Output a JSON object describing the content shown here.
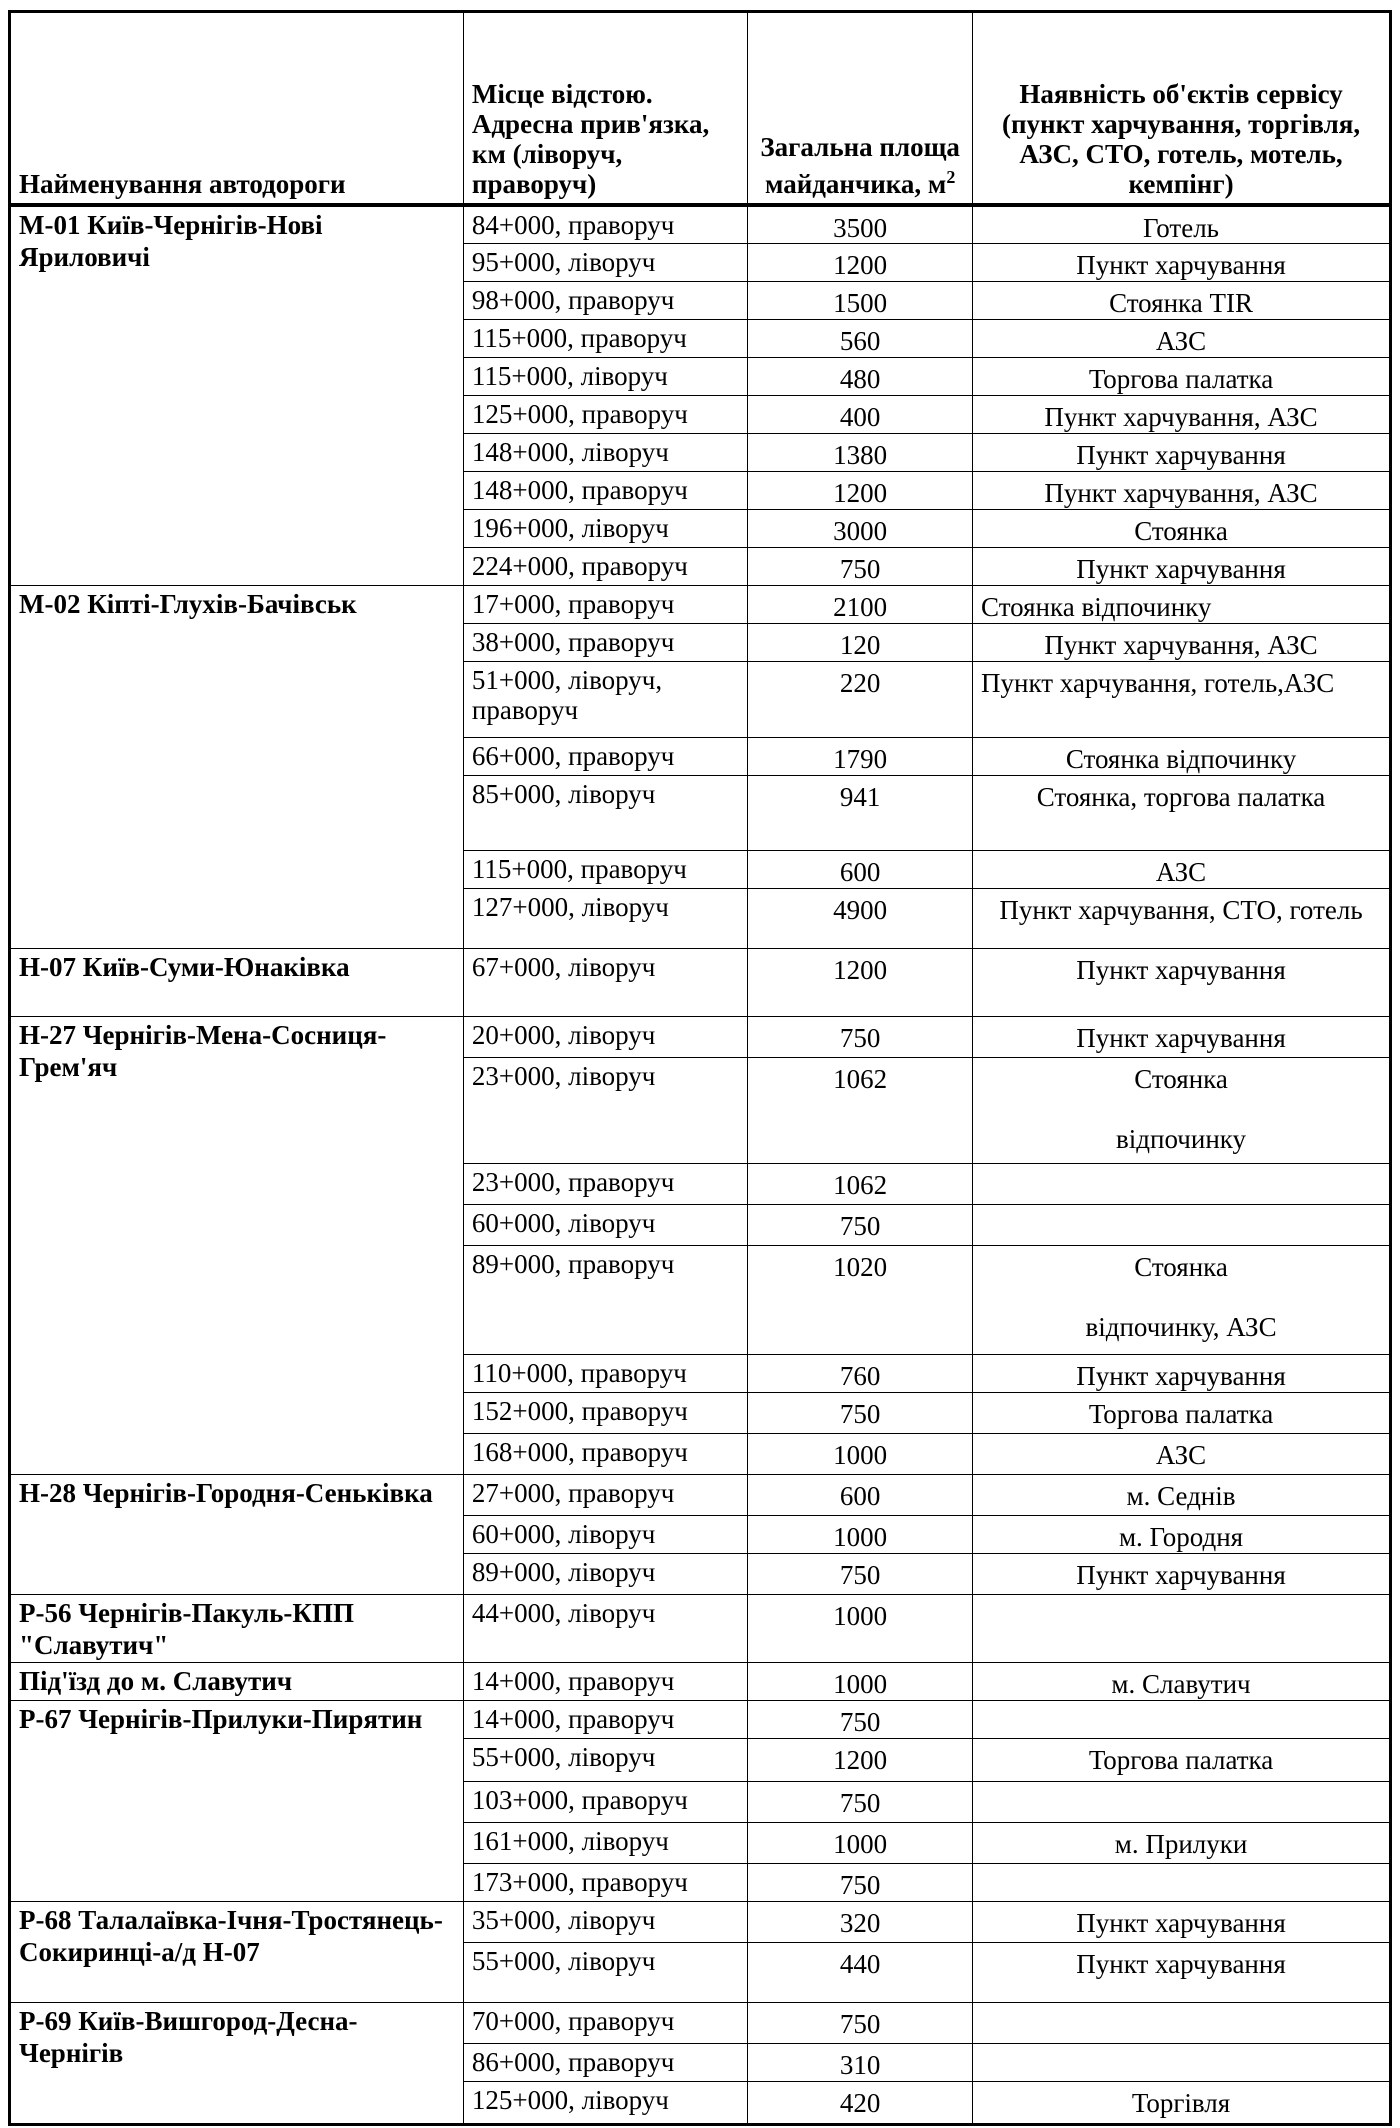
{
  "header": {
    "road": "Найменування автодороги",
    "location": "Місце відстою. Адресна прив'язка,\nкм (ліворуч, праворуч)",
    "area": "Загальна площа майданчика, м",
    "area_sup": "2",
    "services": "Наявність об'єктів сервісу (пункт харчування, торгівля, АЗС, СТО, готель, мотель, кемпінг)"
  },
  "roads": [
    {
      "name": "М-01 Київ-Чернігів-Нові Яриловичі",
      "rows": [
        [
          "84+000, праворуч",
          "3500",
          "Готель"
        ],
        [
          "95+000, ліворуч",
          "1200",
          "Пункт харчування"
        ],
        [
          "98+000, праворуч",
          "1500",
          "Стоянка TIR"
        ],
        [
          "115+000, праворуч",
          "560",
          "АЗС"
        ],
        [
          "115+000, ліворуч",
          "480",
          "Торгова палатка"
        ],
        [
          "125+000, праворуч",
          "400",
          "Пункт харчування, АЗС"
        ],
        [
          "148+000, ліворуч",
          "1380",
          "Пункт харчування"
        ],
        [
          "148+000, праворуч",
          "1200",
          "Пункт харчування, АЗС"
        ],
        [
          "196+000, ліворуч",
          "3000",
          "Стоянка"
        ],
        [
          "224+000, праворуч",
          "750",
          "Пункт харчування"
        ]
      ]
    },
    {
      "name": "М-02 Кіпті-Глухів-Бачівськ",
      "rows": [
        [
          "17+000, праворуч",
          "2100",
          "Стоянка відпочинку"
        ],
        [
          "38+000, праворуч",
          "120",
          "Пункт харчування, АЗС"
        ],
        [
          "51+000, ліворуч, праворуч",
          "220",
          "Пункт харчування, готель,АЗС"
        ],
        [
          "66+000, праворуч",
          "1790",
          "Стоянка відпочинку"
        ],
        [
          "85+000, ліворуч",
          "941",
          "Стоянка, торгова палатка"
        ],
        [
          "115+000, праворуч",
          "600",
          "АЗС"
        ],
        [
          "127+000, ліворуч",
          "4900",
          "Пункт харчування, СТО, готель"
        ]
      ]
    },
    {
      "name": "Н-07 Київ-Суми-Юнаківка",
      "rows": [
        [
          "67+000, ліворуч",
          "1200",
          "Пункт харчування"
        ]
      ]
    },
    {
      "name": "Н-27 Чернігів-Мена-Сосниця-Грем'яч",
      "rows": [
        [
          "20+000, ліворуч",
          "750",
          "Пункт харчування"
        ],
        [
          "23+000, ліворуч",
          "1062",
          "Стоянка\n\nвідпочинку"
        ],
        [
          "23+000, праворуч",
          "1062",
          ""
        ],
        [
          "60+000, ліворуч",
          "750",
          ""
        ],
        [
          "89+000, праворуч",
          "1020",
          "Стоянка\n\nвідпочинку, АЗС"
        ],
        [
          "110+000, праворуч",
          "760",
          "Пункт харчування"
        ],
        [
          "152+000, праворуч",
          "750",
          "Торгова палатка"
        ],
        [
          "168+000, праворуч",
          "1000",
          "АЗС"
        ]
      ]
    },
    {
      "name": "Н-28 Чернігів-Городня-Сеньківка",
      "rows": [
        [
          "27+000, праворуч",
          "600",
          "м. Седнів"
        ],
        [
          "60+000, ліворуч",
          "1000",
          "м. Городня"
        ],
        [
          "89+000, ліворуч",
          "750",
          "Пункт харчування"
        ]
      ]
    },
    {
      "name": "Р-56 Чернігів-Пакуль-КПП \"Славутич\"",
      "rows": [
        [
          "44+000, ліворуч",
          "1000",
          ""
        ]
      ]
    },
    {
      "name": "Під'їзд до м. Славутич",
      "rows": [
        [
          "14+000, праворуч",
          "1000",
          "м. Славутич"
        ]
      ]
    },
    {
      "name": "Р-67 Чернігів-Прилуки-Пирятин",
      "rows": [
        [
          "14+000, праворуч",
          "750",
          ""
        ],
        [
          "55+000, ліворуч",
          "1200",
          "Торгова палатка"
        ],
        [
          "103+000, праворуч",
          "750",
          ""
        ],
        [
          "161+000, ліворуч",
          "1000",
          "м. Прилуки"
        ],
        [
          "173+000, праворуч",
          "750",
          ""
        ]
      ]
    },
    {
      "name": "Р-68 Талалаївка-Ічня-Тростянець-Сокиринці-а/д Н-07",
      "rows": [
        [
          "35+000, ліворуч",
          "320",
          "Пункт харчування"
        ],
        [
          "55+000, ліворуч",
          "440",
          "Пункт харчування"
        ]
      ]
    },
    {
      "name": "Р-69 Київ-Вишгород-Десна-Чернігів",
      "rows": [
        [
          "70+000, праворуч",
          "750",
          ""
        ],
        [
          "86+000, праворуч",
          "310",
          ""
        ],
        [
          "125+000, ліворуч",
          "420",
          "Торгівля"
        ]
      ]
    }
  ]
}
